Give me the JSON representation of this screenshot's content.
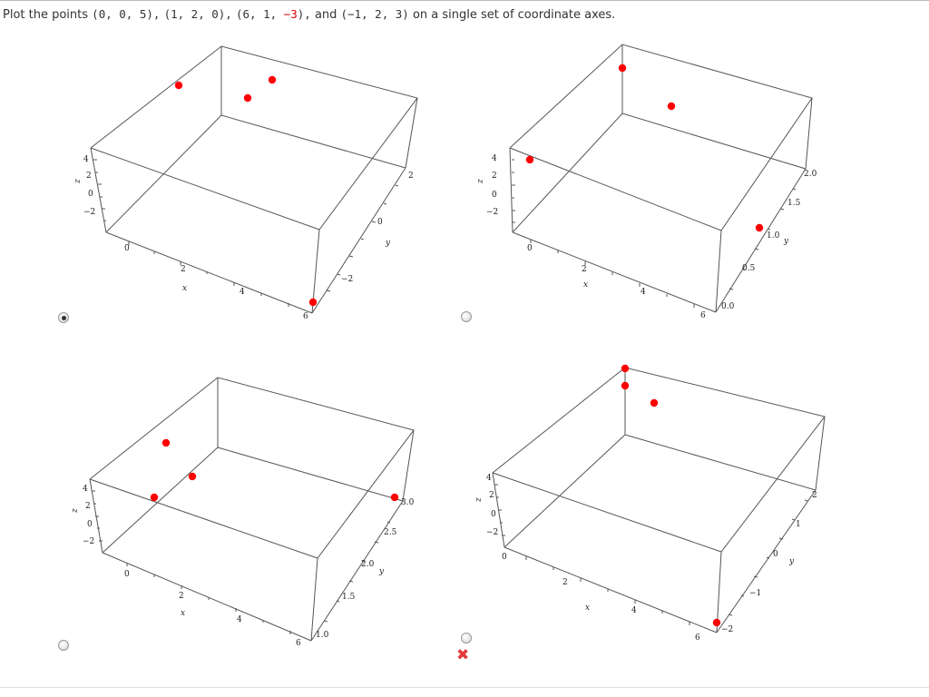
{
  "question": {
    "lead": "Plot the points",
    "p1": "(0, 0, 5),",
    "p2": "(1, 2, 0),",
    "p3a": "(6, 1, ",
    "p3neg": "−3",
    "p3b": "),",
    "and": "and",
    "p4": "(−1, 2, 3)",
    "tail": "on a single set of coordinate axes."
  },
  "point_color": "#ff0000",
  "options": [
    {
      "id": "A",
      "selected": true,
      "z_ticks": [
        "4",
        "2",
        "0",
        "−2"
      ],
      "z_label": "z",
      "x_ticks": [
        "0",
        "2",
        "4",
        "6"
      ],
      "x_label": "x",
      "y_ticks": [
        "−2",
        "0",
        "2"
      ],
      "y_label": "y"
    },
    {
      "id": "B",
      "selected": false,
      "z_ticks": [
        "4",
        "2",
        "0",
        "−2"
      ],
      "z_label": "z",
      "x_ticks": [
        "0",
        "2",
        "4",
        "6"
      ],
      "x_label": "x",
      "y_ticks": [
        "0.0",
        "0.5",
        "1.0",
        "1.5",
        "2.0"
      ],
      "y_label": "y"
    },
    {
      "id": "C",
      "selected": false,
      "z_ticks": [
        "4",
        "2",
        "0",
        "−2"
      ],
      "z_label": "z",
      "x_ticks": [
        "0",
        "2",
        "4",
        "6"
      ],
      "x_label": "x",
      "y_ticks": [
        "1.0",
        "1.5",
        "2.0",
        "2.5",
        "3.0"
      ],
      "y_label": "y"
    },
    {
      "id": "D",
      "selected": false,
      "z_ticks": [
        "4",
        "2",
        "0",
        "−2"
      ],
      "z_label": "z",
      "x_ticks": [
        "0",
        "2",
        "4",
        "6"
      ],
      "x_label": "x",
      "y_ticks": [
        "−2",
        "−1",
        "0",
        "1",
        "2"
      ],
      "y_label": "y",
      "feedback_icon": "incorrect-x-icon"
    }
  ]
}
